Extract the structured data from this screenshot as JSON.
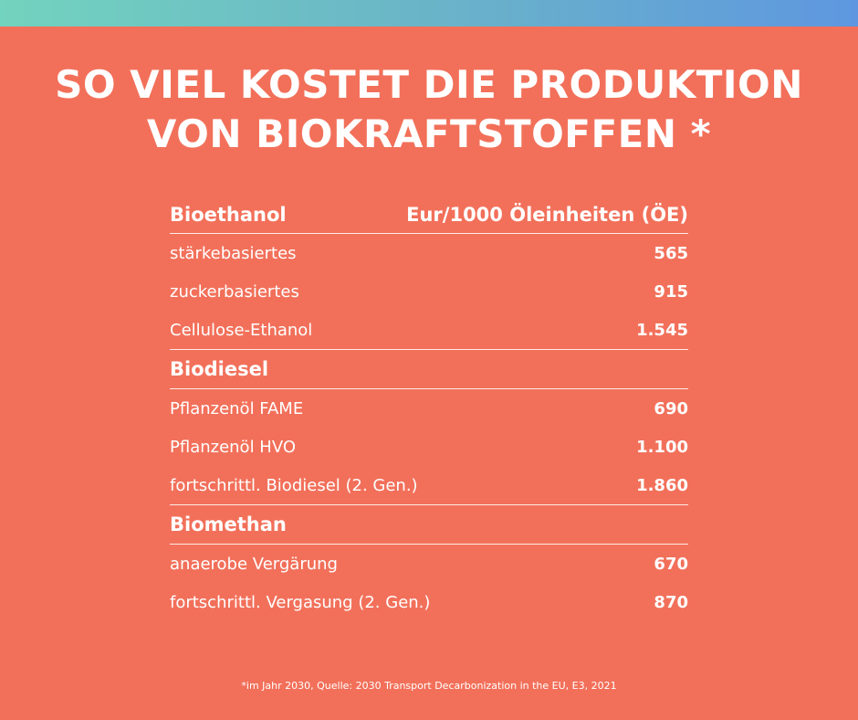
{
  "title": {
    "line1": "SO VIEL KOSTET DIE PRODUKTION",
    "line2": "VON BIOKRAFTSTOFFEN *"
  },
  "table": {
    "unit_label": "Eur/1000 Öleinheiten (ÖE)",
    "groups": [
      {
        "name": "Bioethanol",
        "rows": [
          {
            "label": "stärkebasiertes",
            "value": "565"
          },
          {
            "label": "zuckerbasiertes",
            "value": "915"
          },
          {
            "label": "Cellulose-Ethanol",
            "value": "1.545"
          }
        ]
      },
      {
        "name": "Biodiesel",
        "rows": [
          {
            "label": "Pflanzenöl FAME",
            "value": "690"
          },
          {
            "label": "Pflanzenöl HVO",
            "value": "1.100"
          },
          {
            "label": "fortschrittl. Biodiesel (2. Gen.)",
            "value": "1.860"
          }
        ]
      },
      {
        "name": "Biomethan",
        "rows": [
          {
            "label": "anaerobe Vergärung",
            "value": "670"
          },
          {
            "label": "fortschrittl. Vergasung (2. Gen.)",
            "value": "870"
          }
        ]
      }
    ]
  },
  "footnote": "*im Jahr 2030, Quelle: 2030 Transport Decarbonization in the EU, E3, 2021",
  "colors": {
    "background": "#f2705a",
    "gradient_start": "#72d3be",
    "gradient_end": "#5e97e0",
    "text": "#ffffff"
  }
}
